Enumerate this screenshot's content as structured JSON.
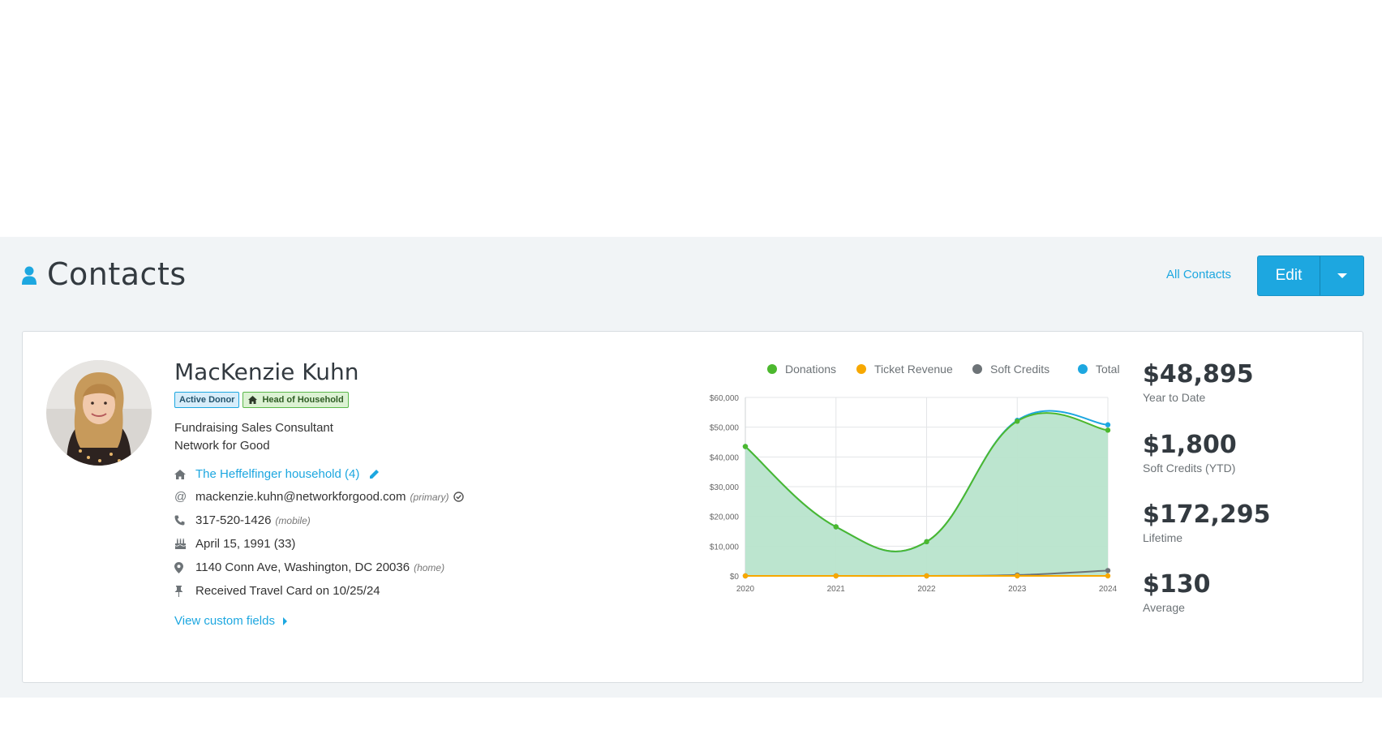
{
  "header": {
    "title": "Contacts",
    "all_contacts_link": "All Contacts",
    "edit_label": "Edit",
    "accent": "#1da7e0"
  },
  "contact": {
    "name": "MacKenzie Kuhn",
    "badges": [
      "Active Donor",
      "Head of Household"
    ],
    "job_title": "Fundraising Sales Consultant",
    "organization": "Network for Good",
    "household": "The Heffelfinger household (4)",
    "email": "mackenzie.kuhn@networkforgood.com",
    "email_note": "(primary)",
    "phone": "317-520-1426",
    "phone_note": "(mobile)",
    "birthday": "April 15, 1991 (33)",
    "address": "1140 Conn Ave, Washington, DC 20036",
    "address_note": "(home)",
    "pinned_note": "Received Travel Card on 10/25/24",
    "custom_fields_link": "View custom fields"
  },
  "stats": [
    {
      "value": "$48,895",
      "label": "Year to Date"
    },
    {
      "value": "$1,800",
      "label": "Soft Credits (YTD)"
    },
    {
      "value": "$172,295",
      "label": "Lifetime"
    },
    {
      "value": "$130",
      "label": "Average"
    }
  ],
  "chart_data": {
    "type": "area",
    "x": [
      "2020",
      "2021",
      "2022",
      "2023",
      "2024"
    ],
    "ylim": [
      0,
      60000
    ],
    "yticks": [
      "$0",
      "$10,000",
      "$20,000",
      "$30,000",
      "$40,000",
      "$50,000",
      "$60,000"
    ],
    "ytick_values": [
      0,
      10000,
      20000,
      30000,
      40000,
      50000,
      60000
    ],
    "legend_position": "top",
    "grid": true,
    "series": [
      {
        "name": "Donations",
        "color": "#4cb82e",
        "values": [
          43500,
          16500,
          11500,
          52000,
          49000
        ]
      },
      {
        "name": "Ticket Revenue",
        "color": "#f7a800",
        "values": [
          0,
          0,
          0,
          0,
          0
        ]
      },
      {
        "name": "Soft Credits",
        "color": "#6d7377",
        "values": [
          0,
          0,
          0,
          300,
          1800
        ]
      },
      {
        "name": "Total",
        "color": "#1da7e0",
        "values": [
          43500,
          16500,
          11500,
          52300,
          50800
        ]
      }
    ],
    "area_fill": "#b8e4cc"
  }
}
